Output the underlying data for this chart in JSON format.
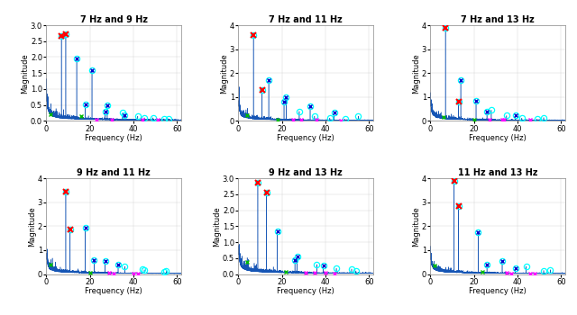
{
  "subplots": [
    {
      "title": "7 Hz and 9 Hz",
      "f1": 7,
      "f2": 9,
      "ylim": [
        0,
        3
      ],
      "yticks": [
        0,
        0.5,
        1,
        1.5,
        2,
        2.5,
        3
      ],
      "f1_harm_amps": [
        2.65,
        1.95,
        1.58,
        0.5,
        0.25,
        0.15,
        0.1,
        0.07
      ],
      "f2_harm_amps": [
        2.73,
        0.52,
        0.28,
        0.18,
        0.1,
        0.07
      ],
      "extra_peaks": {
        "blue": [
          14,
          21,
          28,
          18,
          27,
          36
        ],
        "green": [
          2,
          16
        ],
        "magenta": [
          23,
          30,
          44,
          51
        ]
      }
    },
    {
      "title": "7 Hz and 11 Hz",
      "f1": 7,
      "f2": 11,
      "ylim": [
        0,
        4
      ],
      "yticks": [
        0,
        1,
        2,
        3,
        4
      ],
      "f1_harm_amps": [
        3.6,
        1.7,
        0.8,
        0.4,
        0.2,
        0.12,
        0.08
      ],
      "f2_harm_amps": [
        1.3,
        1.0,
        0.6,
        0.35,
        0.2,
        0.1
      ],
      "extra_peaks": {
        "blue": [
          14,
          21,
          22,
          33,
          44
        ],
        "green": [
          4,
          18
        ],
        "magenta": [
          25,
          29,
          36,
          47
        ]
      }
    },
    {
      "title": "7 Hz and 13 Hz",
      "f1": 7,
      "f2": 13,
      "ylim": [
        0,
        4
      ],
      "yticks": [
        0,
        1,
        2,
        3,
        4
      ],
      "f1_harm_amps": [
        3.9,
        1.7,
        0.85,
        0.45,
        0.22,
        0.12,
        0.08
      ],
      "f2_harm_amps": [
        0.8,
        0.38,
        0.22,
        0.14,
        0.08,
        0.05
      ],
      "extra_peaks": {
        "blue": [
          14,
          21,
          26,
          39
        ],
        "green": [
          6,
          20
        ],
        "magenta": [
          27,
          33,
          34,
          46
        ]
      }
    },
    {
      "title": "9 Hz and 11 Hz",
      "f1": 9,
      "f2": 11,
      "ylim": [
        0,
        4
      ],
      "yticks": [
        0,
        1,
        2,
        3,
        4
      ],
      "f1_harm_amps": [
        3.45,
        1.95,
        0.55,
        0.32,
        0.18,
        0.1,
        0.07
      ],
      "f2_harm_amps": [
        1.85,
        0.6,
        0.38,
        0.22,
        0.12,
        0.07
      ],
      "extra_peaks": {
        "blue": [
          18,
          27,
          22,
          33
        ],
        "green": [
          2,
          20
        ],
        "magenta": [
          29,
          31,
          40,
          42
        ]
      }
    },
    {
      "title": "9 Hz and 13 Hz",
      "f1": 9,
      "f2": 13,
      "ylim": [
        0,
        3
      ],
      "yticks": [
        0,
        0.5,
        1,
        1.5,
        2,
        2.5,
        3
      ],
      "f1_harm_amps": [
        2.85,
        1.35,
        0.55,
        0.3,
        0.18,
        0.1,
        0.07
      ],
      "f2_harm_amps": [
        2.55,
        0.45,
        0.28,
        0.16,
        0.1,
        0.06
      ],
      "extra_peaks": {
        "blue": [
          18,
          27,
          26,
          39
        ],
        "green": [
          4,
          22
        ],
        "magenta": [
          31,
          35,
          40,
          44
        ]
      }
    },
    {
      "title": "11 Hz and 13 Hz",
      "f1": 11,
      "f2": 13,
      "ylim": [
        0,
        4
      ],
      "yticks": [
        0,
        1,
        2,
        3,
        4
      ],
      "f1_harm_amps": [
        3.9,
        1.75,
        0.55,
        0.32,
        0.18,
        0.1,
        0.07
      ],
      "f2_harm_amps": [
        2.85,
        0.4,
        0.25,
        0.15,
        0.09,
        0.06
      ],
      "extra_peaks": {
        "blue": [
          22,
          33,
          26,
          39
        ],
        "green": [
          2,
          24
        ],
        "magenta": [
          35,
          37,
          46,
          48
        ]
      }
    }
  ],
  "xlim": [
    0,
    62
  ],
  "xticks": [
    0,
    20,
    40,
    60
  ],
  "xlabel": "Frequency (Hz)",
  "ylabel": "Magnitude",
  "line_color": "#1555b5",
  "red_cross_color": "#ff0000",
  "cyan_circle_color": "#00ffff",
  "blue_cross_color": "#0000cc",
  "green_cross_color": "#00bb00",
  "magenta_cross_color": "#ff00ff"
}
